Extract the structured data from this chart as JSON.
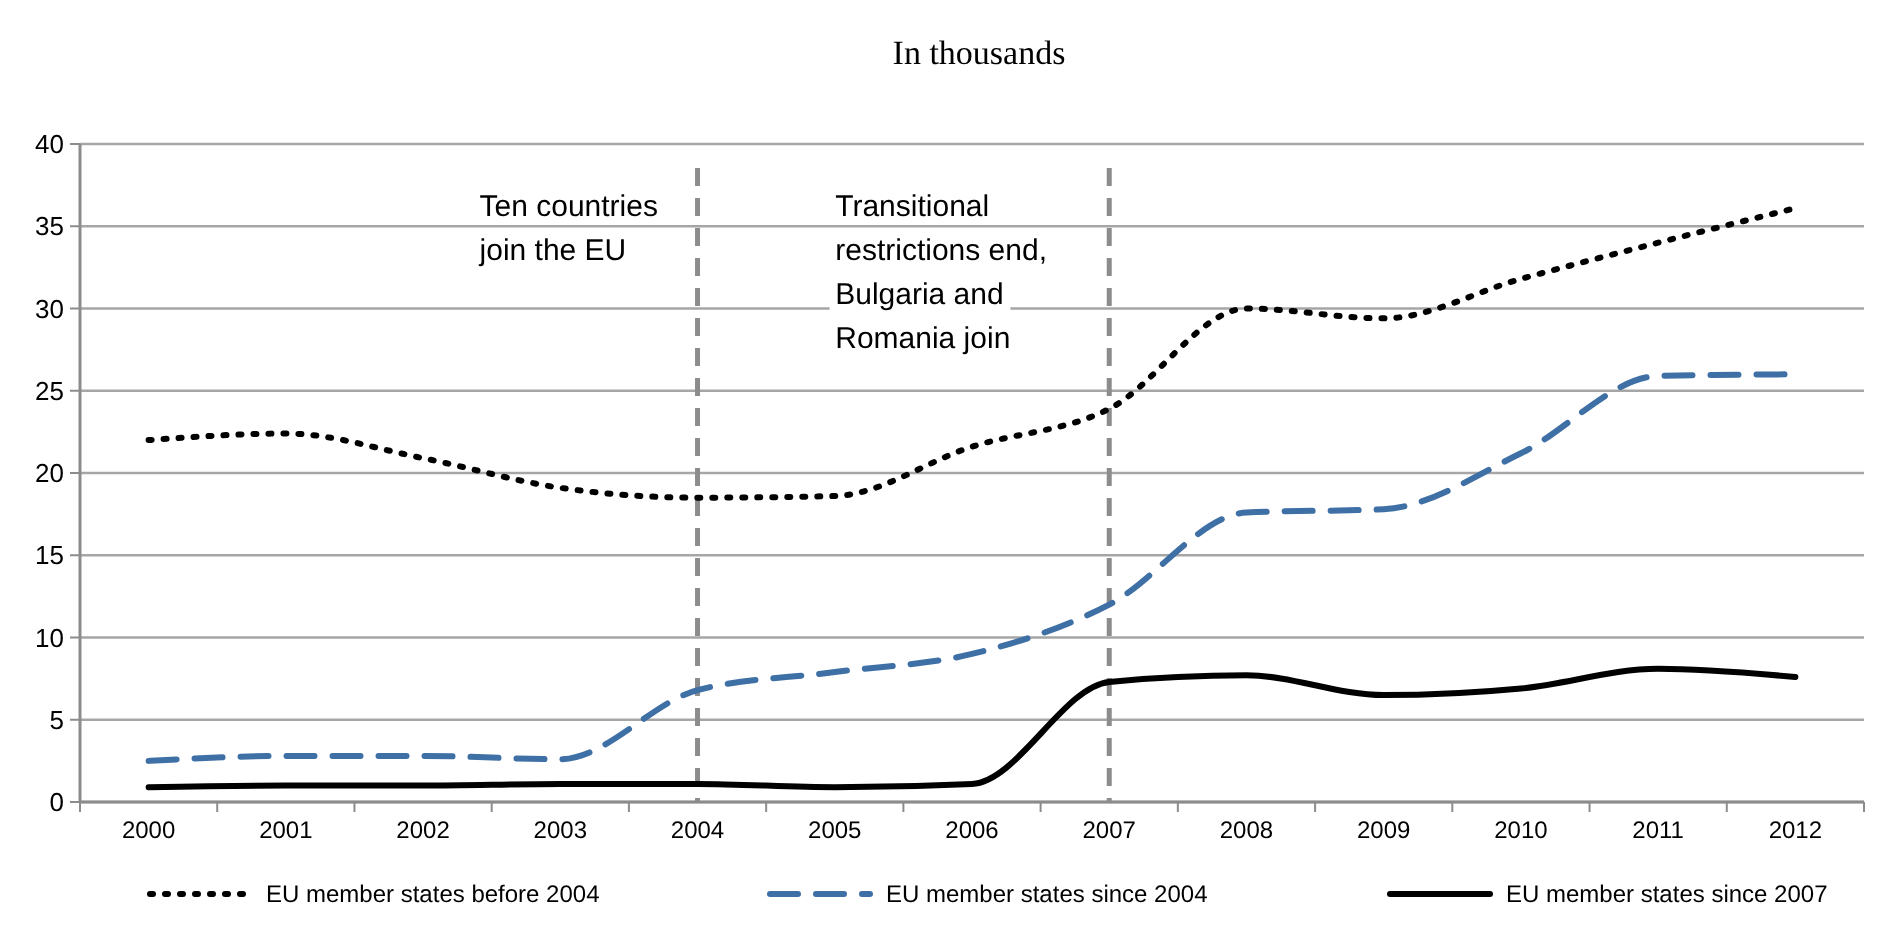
{
  "chart_data": {
    "type": "line",
    "title": "In thousands",
    "categories": [
      "2000",
      "2001",
      "2002",
      "2003",
      "2004",
      "2005",
      "2006",
      "2007",
      "2008",
      "2009",
      "2010",
      "2011",
      "2012"
    ],
    "series": [
      {
        "name": "EU member states before 2004",
        "color": "#000000",
        "line_style": "dotted",
        "values": [
          22.0,
          22.4,
          20.9,
          19.1,
          18.5,
          18.6,
          21.6,
          23.9,
          30.0,
          29.4,
          31.8,
          34.0,
          36.1
        ]
      },
      {
        "name": "EU member states since 2004",
        "color": "#3e6fa5",
        "line_style": "dashed",
        "values": [
          2.5,
          2.8,
          2.8,
          2.6,
          6.8,
          7.9,
          9.0,
          12.0,
          17.6,
          17.8,
          21.2,
          25.9,
          26.0
        ]
      },
      {
        "name": "EU member states since 2007",
        "color": "#000000",
        "line_style": "solid",
        "values": [
          0.9,
          1.0,
          1.0,
          1.1,
          1.1,
          0.9,
          1.1,
          7.3,
          7.7,
          6.5,
          6.9,
          8.1,
          7.6
        ]
      }
    ],
    "ylim": [
      0,
      40
    ],
    "yticks": [
      0,
      5,
      10,
      15,
      20,
      25,
      30,
      35,
      40
    ],
    "grid": "y",
    "legend": "bottom",
    "marker": "none",
    "ref_lines": [
      {
        "axis": "x",
        "value": "2004",
        "label": "Ten countries\njoin the EU",
        "color": "#8c8c8c",
        "line_style": "dashed"
      },
      {
        "axis": "x",
        "value": "2007",
        "label": "Transitional\nrestrictions end,\nBulgaria and\nRomania join",
        "color": "#8c8c8c",
        "line_style": "dashed"
      }
    ]
  }
}
